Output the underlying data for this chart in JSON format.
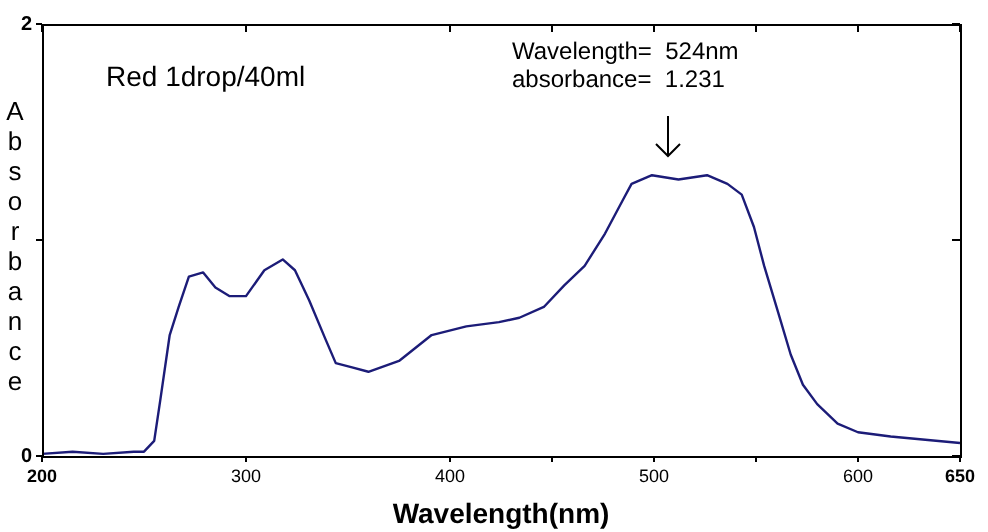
{
  "chart_data": {
    "type": "line",
    "xlabel": "Wavelength(nm)",
    "ylabel": "Absorbance",
    "annotations": [
      "Red 1drop/40ml",
      "Wavelength=  524nm",
      "absorbance=  1.231"
    ],
    "x": [
      200,
      215,
      230,
      245,
      250,
      255,
      258,
      262.6,
      267,
      272,
      279,
      285,
      292,
      300,
      309,
      318,
      324,
      331,
      339,
      344,
      352,
      360,
      375,
      391,
      408,
      424,
      434,
      446,
      456,
      466,
      476,
      485,
      489,
      499,
      512,
      526,
      536,
      543,
      549,
      554,
      561,
      567,
      573,
      580,
      590,
      600,
      616,
      650
    ],
    "series": [
      {
        "color": "#1c1c78",
        "values": [
          0.01,
          0.02,
          0.01,
          0.02,
          0.02,
          0.07,
          0.26,
          0.56,
          0.69,
          0.83,
          0.85,
          0.78,
          0.74,
          0.74,
          0.86,
          0.91,
          0.86,
          0.72,
          0.54,
          0.43,
          0.41,
          0.39,
          0.44,
          0.56,
          0.6,
          0.62,
          0.64,
          0.69,
          0.79,
          0.88,
          1.03,
          1.19,
          1.26,
          1.3,
          1.28,
          1.3,
          1.26,
          1.21,
          1.06,
          0.88,
          0.66,
          0.47,
          0.33,
          0.24,
          0.15,
          0.11,
          0.09,
          0.06
        ]
      }
    ],
    "xlim": [
      200,
      650
    ],
    "xticks": [
      200,
      300,
      400,
      {
        "value": 450,
        "label": null
      },
      500,
      {
        "value": 550,
        "label": null
      },
      600,
      650
    ],
    "ylim": [
      0,
      2
    ],
    "yticks": [
      0,
      {
        "value": 1,
        "label": null
      },
      2
    ],
    "grid": false,
    "legend": false,
    "marker": "none",
    "line_style": "solid"
  }
}
